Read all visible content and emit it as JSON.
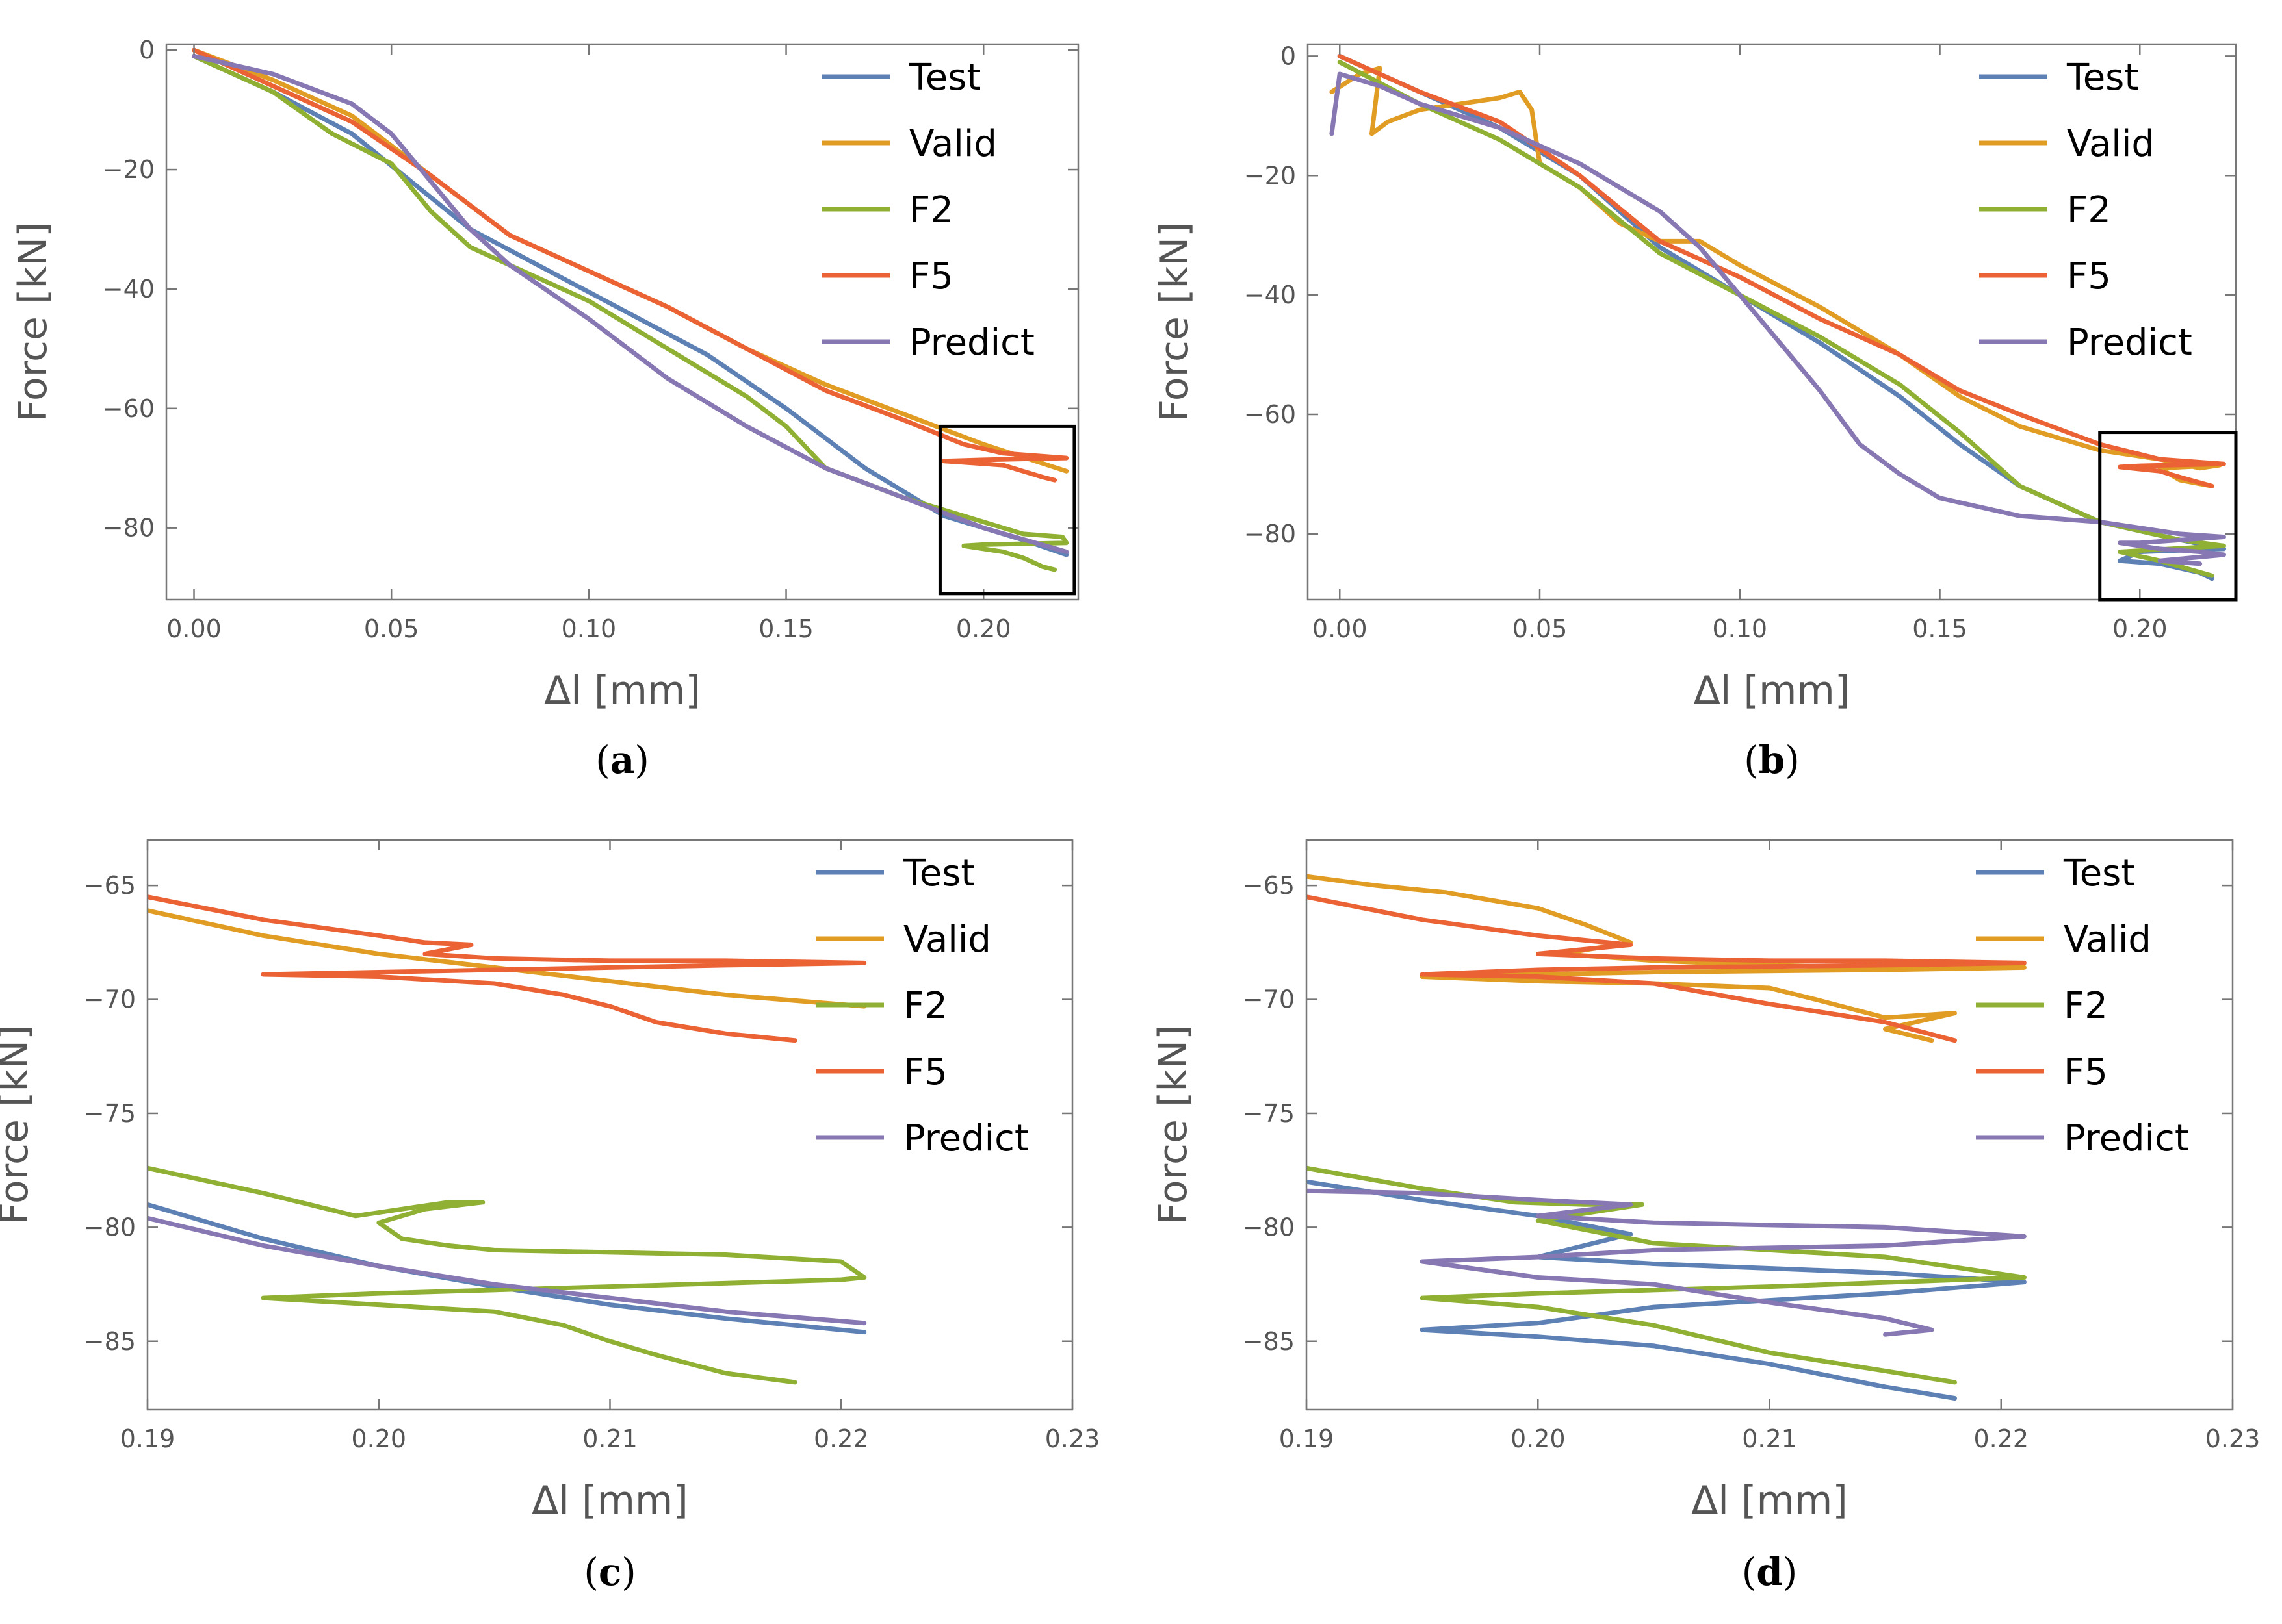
{
  "colors": {
    "Test": "#5E81B5",
    "Valid": "#E19C24",
    "F2": "#8FB032",
    "F5": "#EB6235",
    "Predict": "#8778B3"
  },
  "chart_data": [
    {
      "id": "a",
      "type": "line",
      "label_text": "a",
      "xlabel": "Δl [mm]",
      "ylabel": "Force [kN]",
      "xlim": [
        -0.007,
        0.224
      ],
      "ylim": [
        -92,
        1
      ],
      "xticks": [
        0.0,
        0.05,
        0.1,
        0.15,
        0.2
      ],
      "xtick_labels": [
        "0.00",
        "0.05",
        "0.10",
        "0.15",
        "0.20"
      ],
      "yticks": [
        0,
        -20,
        -40,
        -60,
        -80
      ],
      "ytick_labels": [
        "0",
        "−20",
        "−40",
        "−60",
        "−80"
      ],
      "legend": [
        "Test",
        "Valid",
        "F2",
        "F5",
        "Predict"
      ],
      "legend_position": "top-right",
      "zoom_box": {
        "x": [
          0.189,
          0.223
        ],
        "y": [
          -91,
          -63
        ]
      },
      "series": [
        {
          "name": "Test",
          "x": [
            0.0,
            0.02,
            0.04,
            0.055,
            0.07,
            0.09,
            0.11,
            0.13,
            0.15,
            0.17,
            0.19,
            0.21,
            0.221
          ],
          "y": [
            -1,
            -7,
            -14,
            -22,
            -30,
            -37,
            -44,
            -51,
            -60,
            -70,
            -78,
            -82,
            -84.5
          ]
        },
        {
          "name": "Valid",
          "x": [
            0.0,
            0.02,
            0.04,
            0.06,
            0.08,
            0.1,
            0.12,
            0.14,
            0.16,
            0.18,
            0.2,
            0.221
          ],
          "y": [
            0,
            -5,
            -11,
            -21,
            -31,
            -37,
            -43,
            -50,
            -56,
            -61,
            -66,
            -70.5
          ]
        },
        {
          "name": "F2",
          "x": [
            0.0,
            0.02,
            0.035,
            0.05,
            0.06,
            0.07,
            0.08,
            0.1,
            0.12,
            0.14,
            0.15,
            0.16,
            0.18,
            0.2,
            0.21,
            0.22,
            0.221,
            0.2,
            0.195,
            0.205,
            0.21,
            0.215,
            0.218
          ],
          "y": [
            -1,
            -7,
            -14,
            -19,
            -27,
            -33,
            -36,
            -42,
            -50,
            -58,
            -63,
            -70,
            -75,
            -79,
            -81,
            -81.5,
            -82.5,
            -82.8,
            -83,
            -84,
            -85,
            -86.5,
            -87
          ]
        },
        {
          "name": "F5",
          "x": [
            0.0,
            0.02,
            0.04,
            0.06,
            0.08,
            0.1,
            0.12,
            0.14,
            0.16,
            0.18,
            0.195,
            0.205,
            0.221,
            0.2,
            0.19,
            0.205,
            0.21,
            0.215,
            0.218
          ],
          "y": [
            0,
            -6,
            -12,
            -21,
            -31,
            -37,
            -43,
            -50,
            -57,
            -62,
            -66,
            -67.5,
            -68.3,
            -68.6,
            -68.8,
            -69.5,
            -70.5,
            -71.5,
            -72
          ]
        },
        {
          "name": "Predict",
          "x": [
            0.0,
            0.02,
            0.04,
            0.05,
            0.06,
            0.07,
            0.08,
            0.1,
            0.12,
            0.14,
            0.16,
            0.18,
            0.2,
            0.221
          ],
          "y": [
            -1,
            -4,
            -9,
            -14,
            -22,
            -30,
            -36,
            -45,
            -55,
            -63,
            -70,
            -75,
            -80,
            -84
          ]
        }
      ]
    },
    {
      "id": "b",
      "type": "line",
      "label_text": "b",
      "xlabel": "Δl [mm]",
      "ylabel": "Force [kN]",
      "xlim": [
        -0.008,
        0.224
      ],
      "ylim": [
        -91,
        2
      ],
      "xticks": [
        0.0,
        0.05,
        0.1,
        0.15,
        0.2
      ],
      "xtick_labels": [
        "0.00",
        "0.05",
        "0.10",
        "0.15",
        "0.20"
      ],
      "yticks": [
        0,
        -20,
        -40,
        -60,
        -80
      ],
      "ytick_labels": [
        "0",
        "−20",
        "−40",
        "−60",
        "−80"
      ],
      "legend": [
        "Test",
        "Valid",
        "F2",
        "F5",
        "Predict"
      ],
      "legend_position": "top-right",
      "zoom_box": {
        "x": [
          0.19,
          0.224
        ],
        "y": [
          -91,
          -63
        ]
      },
      "series": [
        {
          "name": "Test",
          "x": [
            0.0,
            0.02,
            0.04,
            0.06,
            0.08,
            0.1,
            0.12,
            0.14,
            0.155,
            0.17,
            0.19,
            0.21,
            0.221,
            0.2,
            0.195,
            0.205,
            0.215,
            0.218
          ],
          "y": [
            0,
            -6,
            -12,
            -20,
            -32,
            -40,
            -48,
            -57,
            -65,
            -72,
            -78,
            -81,
            -82.5,
            -83,
            -84.5,
            -85,
            -86.5,
            -87.5
          ]
        },
        {
          "name": "Valid",
          "x": [
            -0.002,
            0.005,
            0.01,
            0.008,
            0.012,
            0.02,
            0.03,
            0.04,
            0.045,
            0.048,
            0.05,
            0.06,
            0.07,
            0.08,
            0.09,
            0.1,
            0.12,
            0.14,
            0.155,
            0.17,
            0.19,
            0.205,
            0.215,
            0.22,
            0.205,
            0.21,
            0.218
          ],
          "y": [
            -6,
            -3,
            -2,
            -13,
            -11,
            -9,
            -8,
            -7,
            -6,
            -9,
            -18,
            -22,
            -28,
            -31,
            -31,
            -35,
            -42,
            -50,
            -57,
            -62,
            -66,
            -67.5,
            -69,
            -68.5,
            -69,
            -71,
            -72
          ]
        },
        {
          "name": "F2",
          "x": [
            0.0,
            0.02,
            0.04,
            0.06,
            0.08,
            0.1,
            0.12,
            0.14,
            0.155,
            0.17,
            0.19,
            0.21,
            0.221,
            0.2,
            0.195,
            0.205,
            0.218
          ],
          "y": [
            -1,
            -8,
            -14,
            -22,
            -33,
            -40,
            -47,
            -55,
            -63,
            -72,
            -78,
            -81,
            -82,
            -82.8,
            -83,
            -84.5,
            -87
          ]
        },
        {
          "name": "F5",
          "x": [
            0.0,
            0.02,
            0.04,
            0.06,
            0.08,
            0.1,
            0.12,
            0.14,
            0.155,
            0.17,
            0.19,
            0.205,
            0.221,
            0.2,
            0.195,
            0.205,
            0.21,
            0.218
          ],
          "y": [
            0,
            -6,
            -11,
            -20,
            -31,
            -37,
            -44,
            -50,
            -56,
            -60,
            -65,
            -67.5,
            -68.3,
            -68.6,
            -68.8,
            -69.5,
            -70.5,
            -72
          ]
        },
        {
          "name": "Predict",
          "x": [
            -0.002,
            0.0,
            0.01,
            0.02,
            0.04,
            0.05,
            0.06,
            0.07,
            0.08,
            0.09,
            0.1,
            0.11,
            0.12,
            0.13,
            0.14,
            0.15,
            0.17,
            0.19,
            0.21,
            0.221,
            0.2,
            0.195,
            0.205,
            0.215,
            0.221,
            0.205,
            0.215
          ],
          "y": [
            -13,
            -3,
            -5,
            -8,
            -12,
            -15,
            -18,
            -22,
            -26,
            -32,
            -40,
            -48,
            -56,
            -65,
            -70,
            -74,
            -77,
            -78,
            -80,
            -80.5,
            -81.5,
            -81.5,
            -82.5,
            -83,
            -83.5,
            -84.5,
            -85
          ]
        }
      ]
    },
    {
      "id": "c",
      "type": "line",
      "label_text": "c",
      "xlabel": "Δl [mm]",
      "ylabel": "Force [kN]",
      "xlim": [
        0.19,
        0.23
      ],
      "ylim": [
        -88,
        -63
      ],
      "xticks": [
        0.19,
        0.2,
        0.21,
        0.22,
        0.23
      ],
      "xtick_labels": [
        "0.19",
        "0.20",
        "0.21",
        "0.22",
        "0.23"
      ],
      "yticks": [
        -65,
        -70,
        -75,
        -80,
        -85
      ],
      "ytick_labels": [
        "−65",
        "−70",
        "−75",
        "−80",
        "−85"
      ],
      "legend": [
        "Test",
        "Valid",
        "F2",
        "F5",
        "Predict"
      ],
      "legend_position": "top-right",
      "series": [
        {
          "name": "Test",
          "x": [
            0.19,
            0.195,
            0.2,
            0.205,
            0.21,
            0.215,
            0.221
          ],
          "y": [
            -79,
            -80.5,
            -81.7,
            -82.6,
            -83.4,
            -84,
            -84.6
          ]
        },
        {
          "name": "Valid",
          "x": [
            0.19,
            0.195,
            0.2,
            0.205,
            0.21,
            0.215,
            0.221
          ],
          "y": [
            -66.1,
            -67.2,
            -68,
            -68.6,
            -69.2,
            -69.8,
            -70.3
          ]
        },
        {
          "name": "F2",
          "x": [
            0.19,
            0.195,
            0.199,
            0.201,
            0.203,
            0.2045,
            0.202,
            0.2,
            0.201,
            0.203,
            0.205,
            0.21,
            0.215,
            0.22,
            0.221,
            0.22,
            0.21,
            0.2,
            0.195,
            0.2,
            0.205,
            0.208,
            0.21,
            0.212,
            0.215,
            0.218
          ],
          "y": [
            -77.4,
            -78.5,
            -79.5,
            -79.2,
            -78.9,
            -78.9,
            -79.2,
            -79.8,
            -80.5,
            -80.8,
            -81,
            -81.1,
            -81.2,
            -81.5,
            -82.2,
            -82.3,
            -82.6,
            -82.9,
            -83.1,
            -83.4,
            -83.7,
            -84.3,
            -85,
            -85.6,
            -86.4,
            -86.8
          ]
        },
        {
          "name": "F5",
          "x": [
            0.19,
            0.195,
            0.2,
            0.202,
            0.204,
            0.202,
            0.205,
            0.21,
            0.215,
            0.221,
            0.215,
            0.21,
            0.205,
            0.2,
            0.195,
            0.2,
            0.205,
            0.208,
            0.21,
            0.212,
            0.215,
            0.218
          ],
          "y": [
            -65.5,
            -66.5,
            -67.2,
            -67.5,
            -67.6,
            -68,
            -68.2,
            -68.3,
            -68.3,
            -68.4,
            -68.5,
            -68.6,
            -68.7,
            -68.8,
            -68.9,
            -69,
            -69.3,
            -69.8,
            -70.3,
            -71,
            -71.5,
            -71.8
          ]
        },
        {
          "name": "Predict",
          "x": [
            0.19,
            0.195,
            0.2,
            0.205,
            0.21,
            0.215,
            0.221
          ],
          "y": [
            -79.6,
            -80.8,
            -81.7,
            -82.5,
            -83.1,
            -83.7,
            -84.2
          ]
        }
      ]
    },
    {
      "id": "d",
      "type": "line",
      "label_text": "d",
      "xlabel": "Δl [mm]",
      "ylabel": "Force [kN]",
      "xlim": [
        0.19,
        0.23
      ],
      "ylim": [
        -88,
        -63
      ],
      "xticks": [
        0.19,
        0.2,
        0.21,
        0.22,
        0.23
      ],
      "xtick_labels": [
        "0.19",
        "0.20",
        "0.21",
        "0.22",
        "0.23"
      ],
      "yticks": [
        -65,
        -70,
        -75,
        -80,
        -85
      ],
      "ytick_labels": [
        "−65",
        "−70",
        "−75",
        "−80",
        "−85"
      ],
      "legend": [
        "Test",
        "Valid",
        "F2",
        "F5",
        "Predict"
      ],
      "legend_position": "top-right",
      "series": [
        {
          "name": "Test",
          "x": [
            0.19,
            0.195,
            0.2,
            0.204,
            0.202,
            0.2,
            0.205,
            0.21,
            0.215,
            0.221,
            0.215,
            0.205,
            0.2,
            0.195,
            0.2,
            0.205,
            0.21,
            0.215,
            0.218
          ],
          "y": [
            -78,
            -78.8,
            -79.5,
            -80.3,
            -80.8,
            -81.3,
            -81.6,
            -81.8,
            -82,
            -82.4,
            -82.9,
            -83.5,
            -84.2,
            -84.5,
            -84.8,
            -85.2,
            -86,
            -87,
            -87.5
          ]
        },
        {
          "name": "Valid",
          "x": [
            0.19,
            0.193,
            0.196,
            0.2,
            0.202,
            0.204,
            0.201,
            0.205,
            0.21,
            0.215,
            0.221,
            0.215,
            0.205,
            0.2,
            0.195,
            0.2,
            0.205,
            0.21,
            0.212,
            0.215,
            0.218,
            0.215,
            0.217
          ],
          "y": [
            -64.6,
            -65,
            -65.3,
            -66,
            -66.7,
            -67.5,
            -68,
            -68.3,
            -68.5,
            -68.6,
            -68.6,
            -68.7,
            -68.8,
            -68.9,
            -69,
            -69.2,
            -69.3,
            -69.5,
            -70,
            -70.8,
            -70.6,
            -71.3,
            -71.8
          ]
        },
        {
          "name": "F2",
          "x": [
            0.19,
            0.195,
            0.199,
            0.202,
            0.2045,
            0.2,
            0.205,
            0.21,
            0.215,
            0.221,
            0.21,
            0.2,
            0.195,
            0.2,
            0.205,
            0.21,
            0.215,
            0.218
          ],
          "y": [
            -77.4,
            -78.3,
            -78.9,
            -79,
            -79,
            -79.7,
            -80.7,
            -81,
            -81.3,
            -82.2,
            -82.6,
            -82.9,
            -83.1,
            -83.5,
            -84.3,
            -85.5,
            -86.3,
            -86.8
          ]
        },
        {
          "name": "F5",
          "x": [
            0.19,
            0.195,
            0.2,
            0.204,
            0.2,
            0.205,
            0.21,
            0.215,
            0.221,
            0.215,
            0.205,
            0.2,
            0.195,
            0.2,
            0.205,
            0.21,
            0.215,
            0.218
          ],
          "y": [
            -65.5,
            -66.5,
            -67.2,
            -67.6,
            -68,
            -68.2,
            -68.3,
            -68.3,
            -68.4,
            -68.5,
            -68.6,
            -68.7,
            -68.9,
            -69,
            -69.3,
            -70.2,
            -71,
            -71.8
          ]
        },
        {
          "name": "Predict",
          "x": [
            0.19,
            0.195,
            0.2,
            0.204,
            0.2,
            0.205,
            0.21,
            0.215,
            0.221,
            0.215,
            0.205,
            0.2,
            0.195,
            0.2,
            0.205,
            0.21,
            0.215,
            0.217,
            0.215
          ],
          "y": [
            -78.4,
            -78.5,
            -78.8,
            -79,
            -79.5,
            -79.8,
            -79.9,
            -80,
            -80.4,
            -80.8,
            -81,
            -81.3,
            -81.5,
            -82.2,
            -82.5,
            -83.3,
            -84,
            -84.5,
            -84.7
          ]
        }
      ]
    }
  ]
}
